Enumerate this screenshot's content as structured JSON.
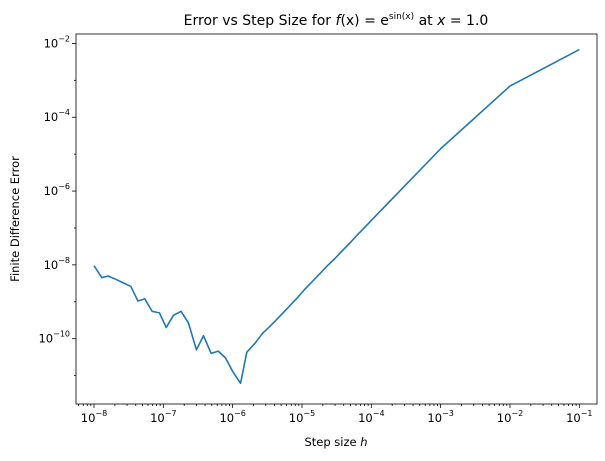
{
  "chart_data": {
    "type": "line",
    "title_parts": {
      "prefix": "Error vs Step Size for ",
      "f": "f",
      "x_paren": "(x) = e",
      "exponent": "sin(x)",
      "at": " at ",
      "xvar": "x",
      "eq": " = 1.0"
    },
    "xlabel_prefix": "Step size ",
    "xlabel_var": "h",
    "ylabel": "Finite Difference Error",
    "x_scale": "log",
    "y_scale": "log",
    "xlim": [
      5.5e-09,
      0.18
    ],
    "ylim": [
      1.7e-12,
      0.018
    ],
    "grid": false,
    "line_color": "#1f77b4",
    "x_tick_labels": [
      {
        "base": "10",
        "exp": "−8",
        "value": 1e-08
      },
      {
        "base": "10",
        "exp": "−7",
        "value": 1e-07
      },
      {
        "base": "10",
        "exp": "−6",
        "value": 1e-06
      },
      {
        "base": "10",
        "exp": "−5",
        "value": 1e-05
      },
      {
        "base": "10",
        "exp": "−4",
        "value": 0.0001
      },
      {
        "base": "10",
        "exp": "−3",
        "value": 0.001
      },
      {
        "base": "10",
        "exp": "−2",
        "value": 0.01
      },
      {
        "base": "10",
        "exp": "−1",
        "value": 0.1
      }
    ],
    "y_tick_labels": [
      {
        "base": "10",
        "exp": "−10",
        "value": 1e-10
      },
      {
        "base": "10",
        "exp": "−8",
        "value": 1e-08
      },
      {
        "base": "10",
        "exp": "−6",
        "value": 1e-06
      },
      {
        "base": "10",
        "exp": "−4",
        "value": 0.0001
      },
      {
        "base": "10",
        "exp": "−2",
        "value": 0.01
      }
    ],
    "series": [
      {
        "x": [
          1e-08,
          1.3e-08,
          1.6e-08,
          2.1e-08,
          2.7e-08,
          3.4e-08,
          4.3e-08,
          5.4e-08,
          6.9e-08,
          8.8e-08,
          1.1e-07,
          1.4e-07,
          1.8e-07,
          2.3e-07,
          3e-07,
          3.8e-07,
          4.9e-07,
          6.2e-07,
          7.9e-07,
          1e-06,
          1.3e-06,
          1.6e-06,
          2.1e-06,
          2.7e-06,
          3.4e-06,
          4.3e-06,
          5.5e-06,
          7e-06,
          8.8e-06,
          1.1e-05,
          1.4e-05,
          1.8e-05,
          2.3e-05,
          3e-05,
          3.8e-05,
          4.9e-05,
          6.2e-05,
          7.9e-05,
          0.0001,
          0.001,
          0.01,
          0.1
        ],
        "y": [
          9.5e-09,
          4.5e-09,
          5e-09,
          4e-09,
          3.2e-09,
          2.6e-09,
          1.05e-09,
          1.2e-09,
          5.5e-10,
          5e-10,
          2e-10,
          4.3e-10,
          5.5e-10,
          2.7e-10,
          5e-11,
          1.2e-10,
          4e-11,
          4.6e-11,
          3e-11,
          1.3e-11,
          6.2e-12,
          4.3e-11,
          7.5e-11,
          1.4e-10,
          2.1e-10,
          3.3e-10,
          5.3e-10,
          8.6e-10,
          1.35e-09,
          2.2e-09,
          3.5e-09,
          5.7e-09,
          9.3e-09,
          1.5e-08,
          2.4e-08,
          3.9e-08,
          6.3e-08,
          1e-07,
          1.6e-07,
          1.4e-05,
          0.0007,
          0.0068
        ]
      }
    ]
  }
}
